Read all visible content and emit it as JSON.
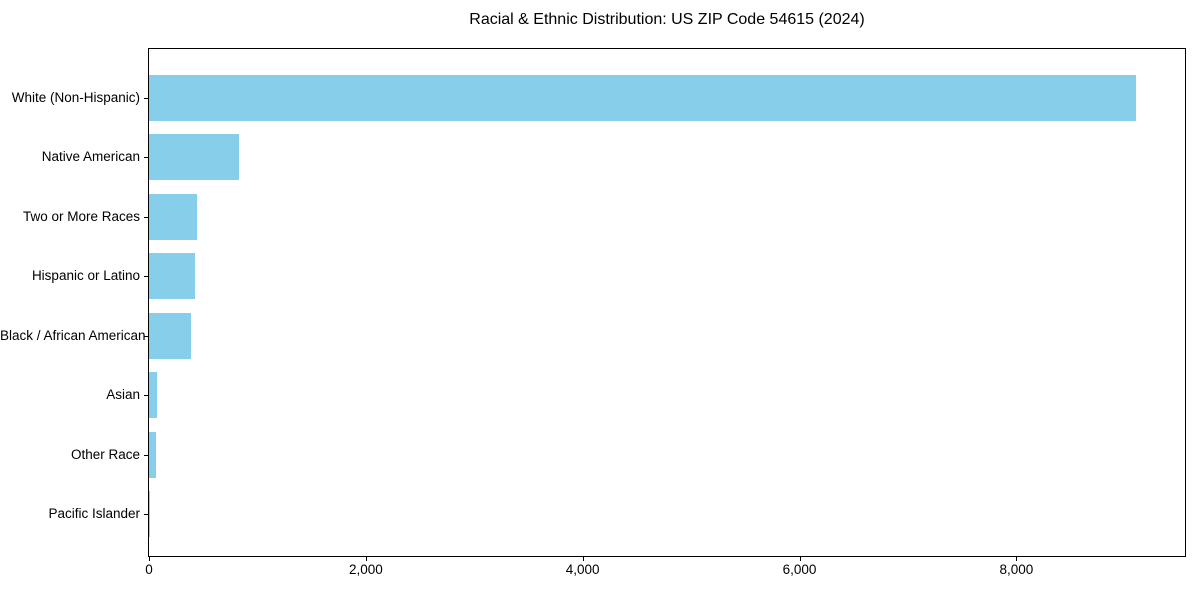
{
  "chart_data": {
    "type": "bar",
    "orientation": "horizontal",
    "title": "Racial & Ethnic Distribution: US ZIP Code 54615 (2024)",
    "categories": [
      "White (Non-Hispanic)",
      "Native American",
      "Two or More Races",
      "Hispanic or Latino",
      "Black / African American",
      "Asian",
      "Other Race",
      "Pacific Islander"
    ],
    "values": [
      9100,
      830,
      440,
      420,
      388,
      70,
      62,
      5
    ],
    "xlabel": "",
    "ylabel": "",
    "xlim": [
      0,
      9555
    ],
    "xticks": [
      0,
      2000,
      4000,
      6000,
      8000
    ],
    "xtick_labels": [
      "0",
      "2,000",
      "4,000",
      "6,000",
      "8,000"
    ],
    "bar_color": "#87CEEB",
    "spine_color": "#000000",
    "background_color": "#FFFFFF",
    "grid": false,
    "legend_position": "none"
  }
}
